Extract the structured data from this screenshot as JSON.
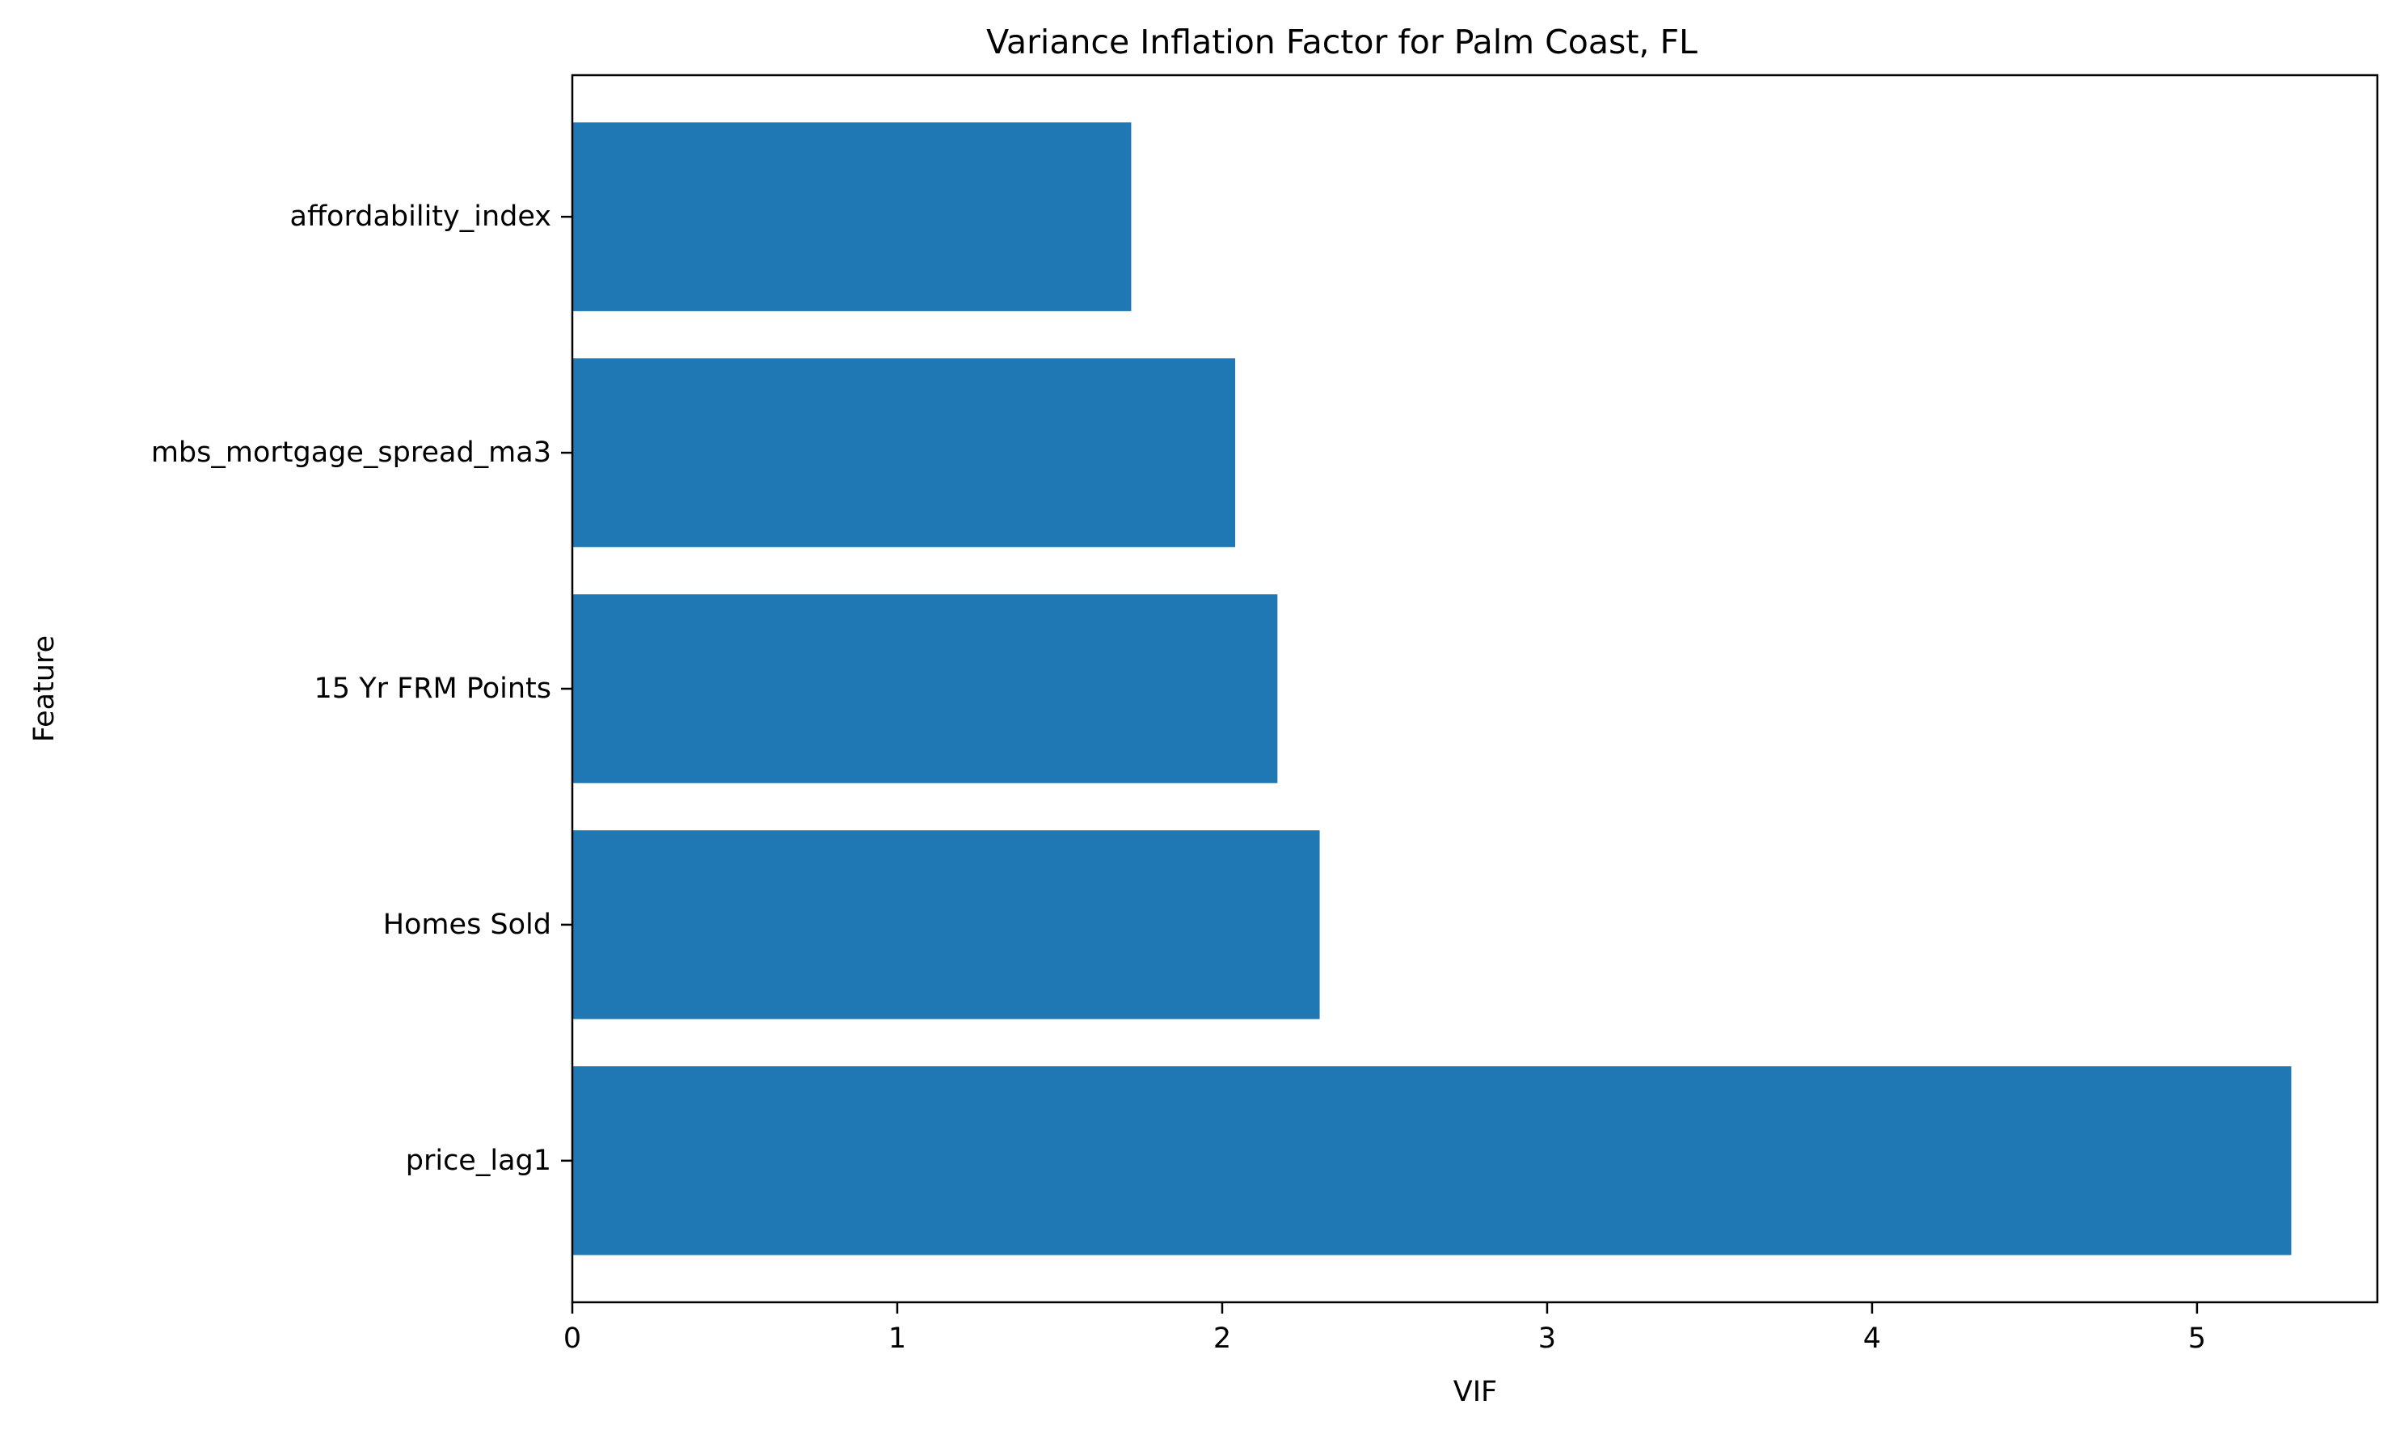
{
  "chart_data": {
    "type": "bar",
    "orientation": "horizontal",
    "title": "Variance Inflation Factor for Palm Coast, FL",
    "xlabel": "VIF",
    "ylabel": "Feature",
    "categories": [
      "price_lag1",
      "Homes Sold",
      "15 Yr FRM Points",
      "mbs_mortgage_spread_ma3",
      "affordability_index"
    ],
    "values": [
      5.29,
      2.3,
      2.17,
      2.04,
      1.72
    ],
    "xlim": [
      0,
      5.555
    ],
    "xticks": [
      0,
      1,
      2,
      3,
      4,
      5
    ],
    "grid": false,
    "bar_color": "#1f77b4"
  }
}
